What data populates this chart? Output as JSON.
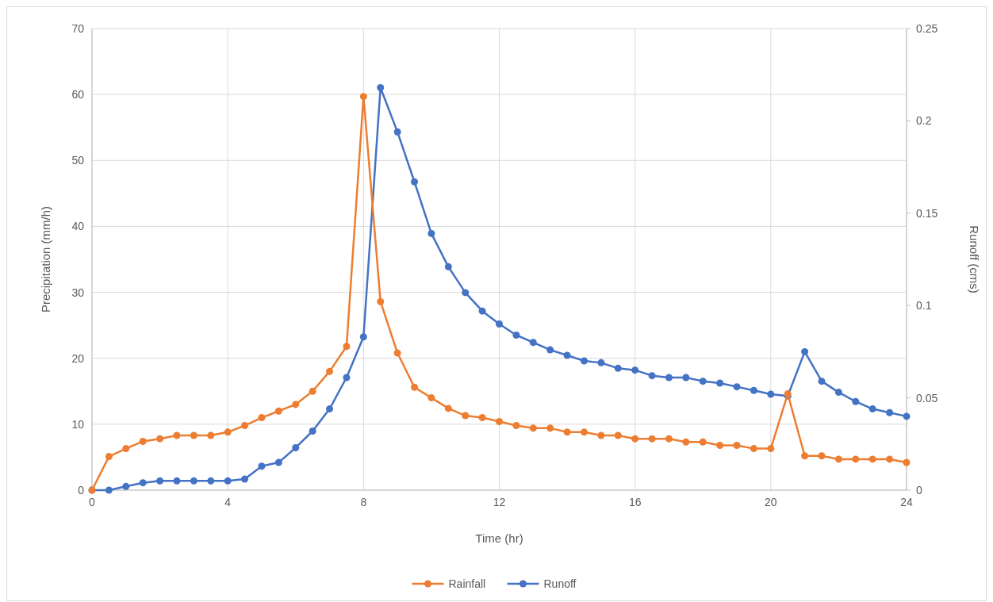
{
  "chart_data": {
    "type": "line",
    "xlabel": "Time (hr)",
    "ylabel": "Precipitation (mm/h)",
    "y2label": "Runoff (cms)",
    "x": [
      0,
      0.5,
      1,
      1.5,
      2,
      2.5,
      3,
      3.5,
      4,
      4.5,
      5,
      5.5,
      6,
      6.5,
      7,
      7.5,
      8,
      8.5,
      9,
      9.5,
      10,
      10.5,
      11,
      11.5,
      12,
      12.5,
      13,
      13.5,
      14,
      14.5,
      15,
      15.5,
      16,
      16.5,
      17,
      17.5,
      18,
      18.5,
      19,
      19.5,
      20,
      20.5,
      21,
      21.5,
      22,
      22.5,
      23,
      23.5,
      24
    ],
    "series": [
      {
        "name": "Rainfall",
        "color": "#ed7d31",
        "values": [
          0,
          5.1,
          6.3,
          7.4,
          7.8,
          8.3,
          8.3,
          8.3,
          8.8,
          9.8,
          11,
          12,
          13,
          15,
          18,
          21.8,
          59.7,
          28.6,
          20.8,
          15.6,
          14,
          12.4,
          11.3,
          11,
          10.4,
          9.8,
          9.4,
          9.4,
          8.8,
          8.8,
          8.3,
          8.3,
          7.8,
          7.8,
          7.8,
          7.3,
          7.3,
          6.8,
          6.8,
          6.3,
          6.3,
          14.6,
          5.2,
          5.2,
          4.7,
          4.7,
          4.7,
          4.7,
          4.2
        ]
      },
      {
        "name": "Runoff",
        "color": "#4472c4",
        "axis": "y2",
        "values": [
          0,
          0,
          0.002,
          0.004,
          0.005,
          0.005,
          0.005,
          0.005,
          0.005,
          0.006,
          0.013,
          0.015,
          0.023,
          0.032,
          0.044,
          0.061,
          0.083,
          0.218,
          0.194,
          0.167,
          0.139,
          0.121,
          0.107,
          0.097,
          0.09,
          0.084,
          0.08,
          0.076,
          0.073,
          0.07,
          0.069,
          0.066,
          0.065,
          0.062,
          0.061,
          0.061,
          0.059,
          0.058,
          0.056,
          0.054,
          0.052,
          0.051,
          0.075,
          0.059,
          0.053,
          0.048,
          0.044,
          0.042,
          0.04
        ]
      }
    ],
    "xlim": [
      0,
      24
    ],
    "xticks": [
      0,
      4,
      8,
      12,
      16,
      20,
      24
    ],
    "ylim": [
      0,
      70
    ],
    "yticks": [
      0,
      10,
      20,
      30,
      40,
      50,
      60,
      70
    ],
    "y2lim": [
      0,
      0.25
    ],
    "y2ticks": [
      0,
      0.05,
      0.1,
      0.15,
      0.2,
      0.25
    ],
    "grid": true,
    "legend": "bottom",
    "marker": "circle",
    "line_style": "solid"
  }
}
